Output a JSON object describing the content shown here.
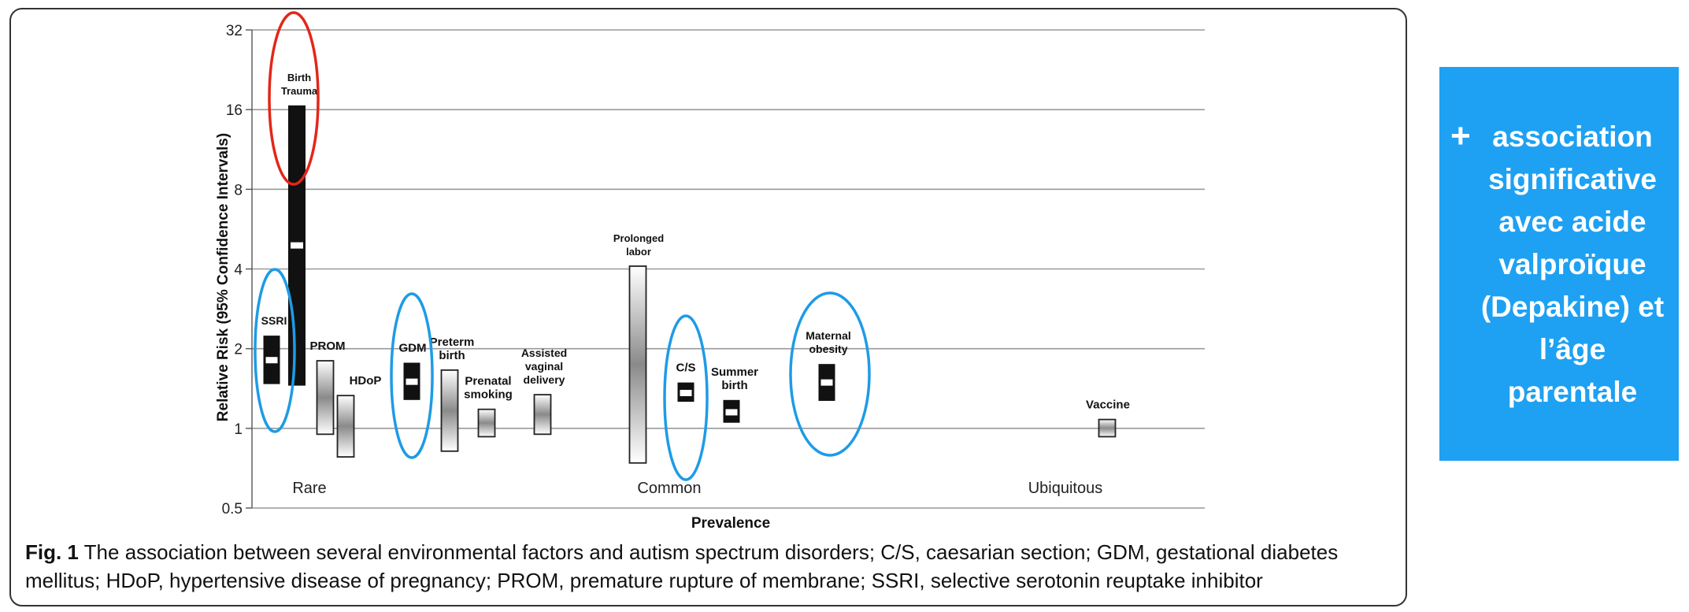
{
  "chart_data": {
    "type": "range",
    "ylabel": "Relative Risk (95% Confidence Intervals)",
    "xlabel": "Prevalence",
    "yscale": "log2",
    "ylim": [
      0.5,
      32
    ],
    "yticks": [
      "32",
      "16",
      "8",
      "4",
      "2",
      "1",
      "0.5"
    ],
    "grid": true,
    "prevalence_labels": [
      "Rare",
      "Common",
      "Ubiquitous"
    ],
    "factors": [
      {
        "label": "SSRI",
        "rr": 1.81,
        "low": 1.47,
        "high": 2.24,
        "significant": true
      },
      {
        "label": "Birth Trauma",
        "rr": 4.91,
        "low": 1.45,
        "high": 16.6,
        "significant": true
      },
      {
        "label": "PROM",
        "rr": 1.3,
        "low": 0.95,
        "high": 1.8,
        "significant": false
      },
      {
        "label": "HDoP",
        "rr": 1.0,
        "low": 0.78,
        "high": 1.33,
        "significant": false
      },
      {
        "label": "GDM",
        "rr": 1.5,
        "low": 1.28,
        "high": 1.77,
        "significant": true
      },
      {
        "label": "Preterm birth",
        "rr": 1.17,
        "low": 0.82,
        "high": 1.66,
        "significant": false
      },
      {
        "label": "Prenatal smoking",
        "rr": 1.02,
        "low": 0.93,
        "high": 1.18,
        "significant": false
      },
      {
        "label": "Assisted vaginal delivery",
        "rr": 1.13,
        "low": 0.95,
        "high": 1.34,
        "significant": false
      },
      {
        "label": "Prolonged labor",
        "rr": 1.73,
        "low": 0.74,
        "high": 4.1,
        "significant": false
      },
      {
        "label": "C/S",
        "rr": 1.36,
        "low": 1.26,
        "high": 1.49,
        "significant": true
      },
      {
        "label": "Summer birth",
        "rr": 1.15,
        "low": 1.05,
        "high": 1.28,
        "significant": true
      },
      {
        "label": "Maternal obesity",
        "rr": 1.49,
        "low": 1.27,
        "high": 1.75,
        "significant": true
      },
      {
        "label": "Vaccine",
        "rr": 0.99,
        "low": 0.93,
        "high": 1.08,
        "significant": false
      }
    ],
    "highlights": {
      "negative": [
        "SSRI",
        "GDM",
        "C/S",
        "Maternal obesity"
      ],
      "positive": [
        "Birth Trauma"
      ],
      "negative_color": "#1e9be6",
      "positive_color": "#e32619"
    }
  },
  "caption": {
    "label": "Fig. 1",
    "text": "The association between several environmental factors and autism spectrum disorders; C/S, caesarian section; GDM, gestational diabetes mellitus; HDoP, hypertensive disease of pregnancy; PROM, premature rupture of membrane; SSRI, selective serotonin reuptake inhibitor"
  },
  "side_note": {
    "plus": "+",
    "text": "association significative avec acide valproïque (Depakine) et l’âge parentale",
    "background": "#1ea1f2"
  }
}
